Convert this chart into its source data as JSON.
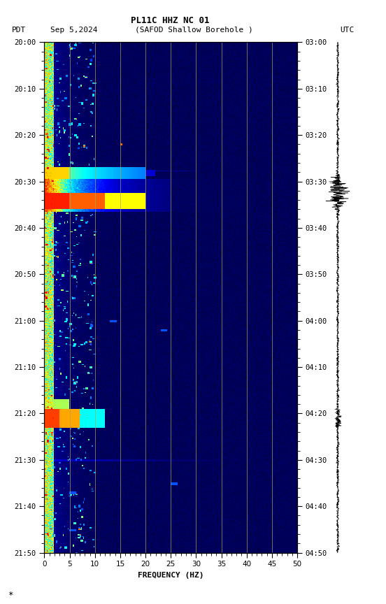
{
  "title_line1": "PL11C HHZ NC 01",
  "xlabel": "FREQUENCY (HZ)",
  "freq_min": 0,
  "freq_max": 50,
  "yticks_pdt": [
    "20:00",
    "20:10",
    "20:20",
    "20:30",
    "20:40",
    "20:50",
    "21:00",
    "21:10",
    "21:20",
    "21:30",
    "21:40",
    "21:50"
  ],
  "yticks_utc": [
    "03:00",
    "03:10",
    "03:20",
    "03:30",
    "03:40",
    "03:50",
    "04:00",
    "04:10",
    "04:20",
    "04:30",
    "04:40",
    "04:50"
  ],
  "xticks": [
    0,
    5,
    10,
    15,
    20,
    25,
    30,
    35,
    40,
    45,
    50
  ],
  "vgrid_freq": [
    5,
    10,
    15,
    20,
    25,
    30,
    35,
    40,
    45
  ],
  "bg_color": "#000090",
  "fig_width": 5.52,
  "fig_height": 8.64
}
